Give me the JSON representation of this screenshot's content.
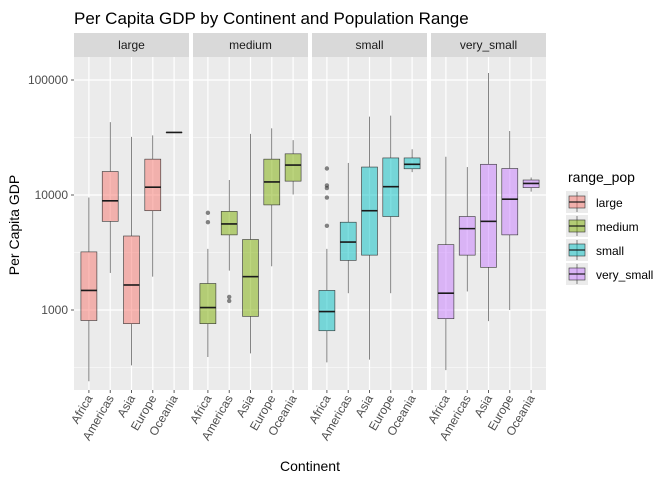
{
  "chart_data": {
    "type": "box",
    "title": "Per Capita GDP by Continent and Population Range",
    "xlabel": "Continent",
    "ylabel": "Per Capita GDP",
    "y_scale": "log10",
    "ylim": [
      200,
      200000
    ],
    "y_ticks": [
      1000,
      10000,
      100000
    ],
    "y_tick_labels": [
      "1000",
      "10000",
      "100000"
    ],
    "categories": [
      "Africa",
      "Americas",
      "Asia",
      "Europe",
      "Oceania"
    ],
    "legend": {
      "title": "range_pop",
      "position": "right",
      "entries": [
        "large",
        "medium",
        "small",
        "very_small"
      ]
    },
    "colors": {
      "large": "#F8766D",
      "medium": "#7CAE00",
      "small": "#00BFC4",
      "very_small": "#C77CFF",
      "panel_bg": "#EBEBEB",
      "strip_bg": "#D9D9D9"
    },
    "facets": [
      {
        "name": "large",
        "boxes": [
          {
            "x": "Africa",
            "min": 240,
            "q1": 810,
            "median": 1480,
            "q3": 3200,
            "max": 9500,
            "outliers": []
          },
          {
            "x": "Americas",
            "min": 2100,
            "q1": 5900,
            "median": 8900,
            "q3": 16000,
            "max": 43000,
            "outliers": []
          },
          {
            "x": "Asia",
            "min": 330,
            "q1": 760,
            "median": 1650,
            "q3": 4400,
            "max": 32000,
            "outliers": []
          },
          {
            "x": "Europe",
            "min": 1950,
            "q1": 7300,
            "median": 11700,
            "q3": 20500,
            "max": 33000,
            "outliers": []
          },
          {
            "x": "Oceania",
            "min": 35000,
            "q1": 35000,
            "median": 35000,
            "q3": 35000,
            "max": 35000,
            "outliers": []
          }
        ]
      },
      {
        "name": "medium",
        "boxes": [
          {
            "x": "Africa",
            "min": 390,
            "q1": 760,
            "median": 1050,
            "q3": 1700,
            "max": 3400,
            "outliers": [
              5800,
              7000
            ]
          },
          {
            "x": "Americas",
            "min": 2200,
            "q1": 4500,
            "median": 5600,
            "q3": 7200,
            "max": 13500,
            "outliers": [
              1200,
              1300
            ]
          },
          {
            "x": "Asia",
            "min": 420,
            "q1": 880,
            "median": 1950,
            "q3": 4100,
            "max": 34000,
            "outliers": []
          },
          {
            "x": "Europe",
            "min": 2400,
            "q1": 8200,
            "median": 13000,
            "q3": 20500,
            "max": 38000,
            "outliers": []
          },
          {
            "x": "Oceania",
            "min": 10100,
            "q1": 13200,
            "median": 18200,
            "q3": 22800,
            "max": 30000,
            "outliers": []
          }
        ]
      },
      {
        "name": "small",
        "boxes": [
          {
            "x": "Africa",
            "min": 350,
            "q1": 660,
            "median": 970,
            "q3": 1480,
            "max": 3400,
            "outliers": [
              5400,
              9500,
              11500,
              12100,
              17000
            ]
          },
          {
            "x": "Americas",
            "min": 1400,
            "q1": 2700,
            "median": 3900,
            "q3": 5800,
            "max": 19000,
            "outliers": []
          },
          {
            "x": "Asia",
            "min": 370,
            "q1": 3000,
            "median": 7300,
            "q3": 17500,
            "max": 48000,
            "outliers": []
          },
          {
            "x": "Europe",
            "min": 1400,
            "q1": 6500,
            "median": 11800,
            "q3": 21000,
            "max": 49000,
            "outliers": []
          },
          {
            "x": "Oceania",
            "min": 15800,
            "q1": 16900,
            "median": 18500,
            "q3": 21000,
            "max": 25000,
            "outliers": []
          }
        ]
      },
      {
        "name": "very_small",
        "boxes": [
          {
            "x": "Africa",
            "min": 300,
            "q1": 840,
            "median": 1400,
            "q3": 3700,
            "max": 21500,
            "outliers": []
          },
          {
            "x": "Americas",
            "min": 1450,
            "q1": 3000,
            "median": 5100,
            "q3": 6500,
            "max": 17500,
            "outliers": []
          },
          {
            "x": "Asia",
            "min": 800,
            "q1": 2350,
            "median": 5900,
            "q3": 18500,
            "max": 115000,
            "outliers": []
          },
          {
            "x": "Europe",
            "min": 1000,
            "q1": 4500,
            "median": 9200,
            "q3": 17000,
            "max": 36000,
            "outliers": []
          },
          {
            "x": "Oceania",
            "min": 10700,
            "q1": 11600,
            "median": 12600,
            "q3": 13500,
            "max": 14200,
            "outliers": []
          }
        ]
      }
    ]
  }
}
